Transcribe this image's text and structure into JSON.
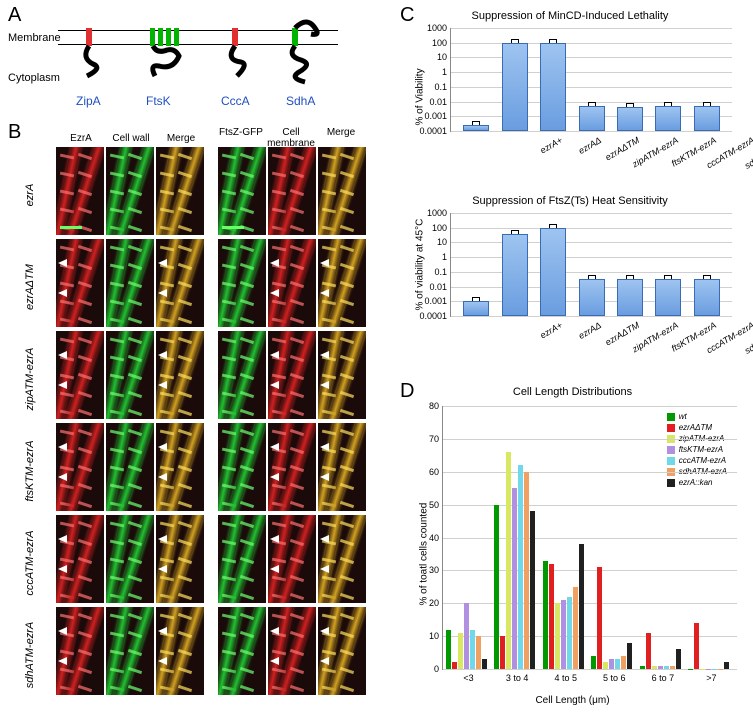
{
  "panelA": {
    "label": "A",
    "membrane_label": "Membrane",
    "cytoplasm_label": "Cytoplasm",
    "proteins": [
      {
        "name": "ZipA",
        "x": 80
      },
      {
        "name": "FtsK",
        "x": 150
      },
      {
        "name": "CccA",
        "x": 225
      },
      {
        "name": "SdhA",
        "x": 290
      }
    ],
    "name_color": "#2050c0",
    "tm_green": "#00b400",
    "tm_red": "#e03030"
  },
  "panelB": {
    "label": "B",
    "col_headers_left": [
      "EzrA",
      "Cell wall",
      "Merge"
    ],
    "col_headers_right": [
      "FtsZ-GFP",
      "Cell\nmembrane",
      "Merge"
    ],
    "row_labels": [
      "ezrA",
      "ezrAΔTM",
      "zipATM-ezrA",
      "ftsKTM-ezrA",
      "cccATM-ezrA",
      "sdhATM-ezrA"
    ],
    "colors": {
      "red": "#d02020",
      "green": "#20c030",
      "merge": "#d0a020",
      "bg": "#110505"
    }
  },
  "panelC": {
    "label": "C",
    "charts": [
      {
        "title": "Suppression of MinCD-Induced Lethality",
        "ylabel": "% of Viability",
        "categories": [
          "ezrA+",
          "ezrAΔ",
          "ezrAΔTM",
          "zipATM-ezrA",
          "ftsKTM-ezrA",
          "cccATM-ezrA",
          "sdhATM-ezrA"
        ],
        "values_log10": [
          -3.6,
          2.0,
          2.0,
          -2.3,
          -2.4,
          -2.3,
          -2.3
        ],
        "ylim_log10": [
          -4,
          3
        ],
        "yticks_log10": [
          -4,
          -3,
          -2,
          -1,
          0,
          1,
          2,
          3
        ],
        "ytick_labels": [
          "0.0001",
          "0.001",
          "0.01",
          "0.1",
          "1",
          "10",
          "100",
          "1000"
        ]
      },
      {
        "title": "Suppression of FtsZ(Ts) Heat Sensitivity",
        "ylabel": "% of viability at 45°C",
        "categories": [
          "ezrA+",
          "ezrAΔ",
          "ezrAΔTM",
          "zipATM-ezrA",
          "ftsKTM-ezrA",
          "cccATM-ezrA",
          "sdhATM-ezrA"
        ],
        "values_log10": [
          -3.0,
          1.6,
          2.0,
          -1.5,
          -1.5,
          -1.5,
          -1.5
        ],
        "ylim_log10": [
          -4,
          3
        ],
        "yticks_log10": [
          -4,
          -3,
          -2,
          -1,
          0,
          1,
          2,
          3
        ],
        "ytick_labels": [
          "0.0001",
          "0.001",
          "0.01",
          "0.1",
          "1",
          "10",
          "100",
          "1000"
        ]
      }
    ],
    "bar_fill": "#6a9de0",
    "bar_stroke": "#3a6cb5",
    "grid_color": "#d0d0d0"
  },
  "panelD": {
    "label": "D",
    "title": "Cell Length Distributions",
    "xlabel": "Cell Length (μm)",
    "ylabel": "% of toatl cells counted",
    "categories": [
      "<3",
      "3 to 4",
      "4 to 5",
      "5 to 6",
      "6 to 7",
      ">7"
    ],
    "series": [
      {
        "name": "wt",
        "color": "#009a00",
        "values": [
          12,
          50,
          33,
          4,
          1,
          0
        ]
      },
      {
        "name": "ezrAΔTM",
        "color": "#e02020",
        "values": [
          2,
          10,
          32,
          31,
          11,
          14
        ]
      },
      {
        "name": "zipATM-ezrA",
        "color": "#d8e860",
        "values": [
          11,
          66,
          20,
          2,
          1,
          0
        ]
      },
      {
        "name": "ftsKTM-ezrA",
        "color": "#b090e0",
        "values": [
          20,
          55,
          21,
          3,
          1,
          0
        ]
      },
      {
        "name": "cccATM-ezrA",
        "color": "#70d8e8",
        "values": [
          12,
          62,
          22,
          3,
          1,
          0
        ]
      },
      {
        "name": "sdhATM-ezrA",
        "color": "#f0a060",
        "values": [
          10,
          60,
          25,
          4,
          1,
          0
        ]
      },
      {
        "name": "ezrA::kan",
        "color": "#202020",
        "values": [
          3,
          48,
          38,
          8,
          6,
          2
        ]
      }
    ],
    "ylim": [
      0,
      80
    ],
    "ytick_step": 10
  }
}
